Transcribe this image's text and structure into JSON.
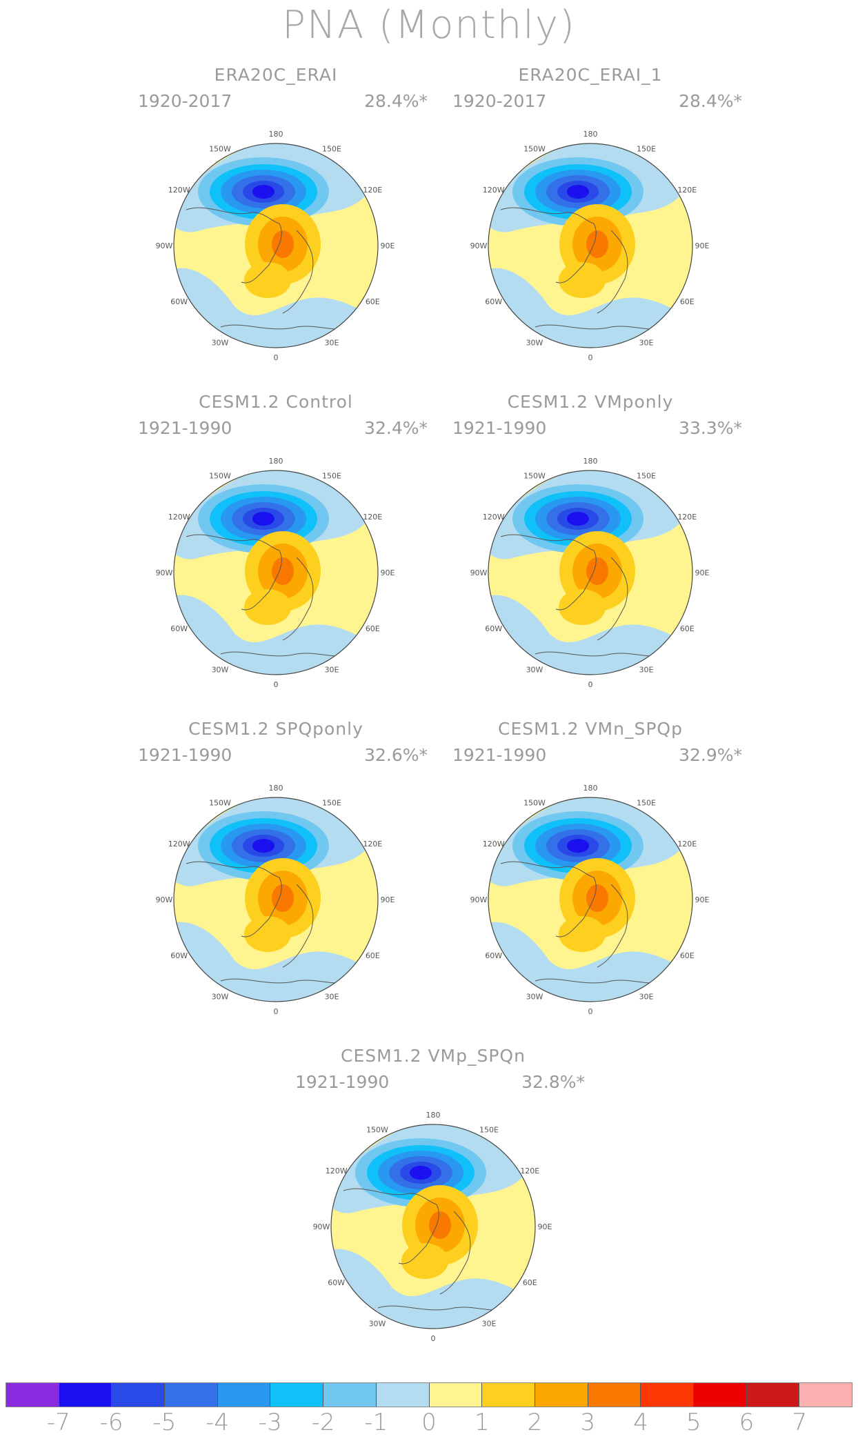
{
  "title": "PNA (Monthly)",
  "lon_labels": [
    "180",
    "150E",
    "120E",
    "90E",
    "60E",
    "30E",
    "0",
    "30W",
    "60W",
    "90W",
    "120W",
    "150W"
  ],
  "panels": [
    {
      "title": "ERA20C_ERAI",
      "years": "1920-2017",
      "variance": "28.4%*"
    },
    {
      "title": "ERA20C_ERAI_1",
      "years": "1920-2017",
      "variance": "28.4%*"
    },
    {
      "title": "CESM1.2 Control",
      "years": "1921-1990",
      "variance": "32.4%*"
    },
    {
      "title": "CESM1.2 VMponly",
      "years": "1921-1990",
      "variance": "33.3%*"
    },
    {
      "title": "CESM1.2 SPQponly",
      "years": "1921-1990",
      "variance": "32.6%*"
    },
    {
      "title": "CESM1.2 VMn_SPQp",
      "years": "1921-1990",
      "variance": "32.9%*"
    },
    {
      "title": "CESM1.2 VMp_SPQn",
      "years": "1921-1990",
      "variance": "32.8%*"
    }
  ],
  "colorbar": {
    "colors": [
      "#8a2be2",
      "#1a10f0",
      "#2a4ae8",
      "#3470e8",
      "#2898f0",
      "#10c0f8",
      "#70c8f0",
      "#b4dcf0",
      "#fff590",
      "#fdd020",
      "#fca800",
      "#f87800",
      "#fc3800",
      "#ec0000",
      "#cc1818",
      "#fcb0b0"
    ],
    "ticks": [
      "-7",
      "-6",
      "-5",
      "-4",
      "-3",
      "-2",
      "-1",
      "0",
      "1",
      "2",
      "3",
      "4",
      "5",
      "6",
      "7"
    ]
  }
}
